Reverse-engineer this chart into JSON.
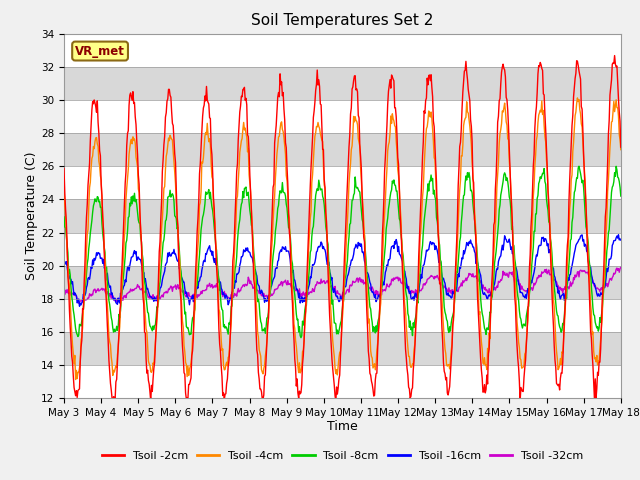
{
  "title": "Soil Temperatures Set 2",
  "xlabel": "Time",
  "ylabel": "Soil Temperature (C)",
  "ylim": [
    12,
    34
  ],
  "annotation": "VR_met",
  "x_tick_labels": [
    "May 3",
    "May 4",
    "May 5",
    "May 6",
    "May 7",
    "May 8",
    "May 9",
    "May 10",
    "May 11",
    "May 12",
    "May 13",
    "May 14",
    "May 15",
    "May 16",
    "May 17",
    "May 18"
  ],
  "series_labels": [
    "Tsoil -2cm",
    "Tsoil -4cm",
    "Tsoil -8cm",
    "Tsoil -16cm",
    "Tsoil -32cm"
  ],
  "series_colors": [
    "#ff0000",
    "#ff8800",
    "#00cc00",
    "#0000ff",
    "#cc00cc"
  ],
  "band_colors": [
    "#ffffff",
    "#d8d8d8"
  ],
  "title_fontsize": 11,
  "axis_fontsize": 9,
  "tick_fontsize": 7.5
}
